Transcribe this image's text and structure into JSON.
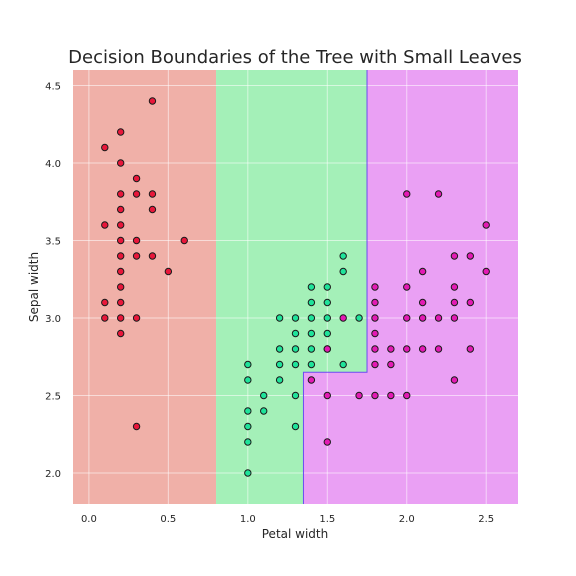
{
  "chart_data": {
    "type": "scatter",
    "title": "Decision Boundaries of the Tree with Small Leaves",
    "xlabel": "Petal width",
    "ylabel": "Sepal width",
    "xlim": [
      -0.1,
      2.7
    ],
    "ylim": [
      1.8,
      4.6
    ],
    "xticks": [
      "0.0",
      "0.5",
      "1.0",
      "1.5",
      "2.0",
      "2.5"
    ],
    "yticks": [
      "2.0",
      "2.5",
      "3.0",
      "3.5",
      "4.0",
      "4.5"
    ],
    "grid": true,
    "regions": [
      {
        "class": "setosa",
        "color": "#f0b0a8",
        "polygon": [
          [
            -0.1,
            1.8
          ],
          [
            0.8,
            1.8
          ],
          [
            0.8,
            4.6
          ],
          [
            -0.1,
            4.6
          ]
        ]
      },
      {
        "class": "versicolor",
        "color": "#a4f0b8",
        "polygon": [
          [
            0.8,
            1.8
          ],
          [
            1.35,
            1.8
          ],
          [
            1.35,
            2.65
          ],
          [
            1.75,
            2.65
          ],
          [
            1.75,
            4.6
          ],
          [
            0.8,
            4.6
          ]
        ]
      },
      {
        "class": "virginica",
        "color": "#eaa0f4",
        "polygon": [
          [
            1.35,
            1.8
          ],
          [
            2.7,
            1.8
          ],
          [
            2.7,
            4.6
          ],
          [
            1.75,
            4.6
          ],
          [
            1.75,
            2.65
          ],
          [
            1.35,
            2.65
          ]
        ]
      }
    ],
    "boundary_color": "#6a4cf0",
    "boundaries": [
      [
        [
          1.35,
          1.8
        ],
        [
          1.35,
          2.65
        ],
        [
          1.75,
          2.65
        ],
        [
          1.75,
          4.6
        ]
      ]
    ],
    "series": [
      {
        "color": "#e8173a",
        "points": [
          [
            0.4,
            4.4
          ],
          [
            0.2,
            4.2
          ],
          [
            0.1,
            4.1
          ],
          [
            0.2,
            4.0
          ],
          [
            0.3,
            3.9
          ],
          [
            0.2,
            3.8
          ],
          [
            0.3,
            3.8
          ],
          [
            0.4,
            3.8
          ],
          [
            0.2,
            3.7
          ],
          [
            0.4,
            3.7
          ],
          [
            0.1,
            3.6
          ],
          [
            0.2,
            3.6
          ],
          [
            0.2,
            3.5
          ],
          [
            0.3,
            3.5
          ],
          [
            0.6,
            3.5
          ],
          [
            0.2,
            3.4
          ],
          [
            0.3,
            3.4
          ],
          [
            0.4,
            3.4
          ],
          [
            0.2,
            3.3
          ],
          [
            0.5,
            3.3
          ],
          [
            0.2,
            3.2
          ],
          [
            0.1,
            3.1
          ],
          [
            0.2,
            3.1
          ],
          [
            0.1,
            3.0
          ],
          [
            0.2,
            3.0
          ],
          [
            0.3,
            3.0
          ],
          [
            0.2,
            2.9
          ],
          [
            0.3,
            2.3
          ]
        ]
      },
      {
        "color": "#1fe39a",
        "points": [
          [
            1.6,
            3.4
          ],
          [
            1.6,
            3.3
          ],
          [
            1.4,
            3.2
          ],
          [
            1.5,
            3.2
          ],
          [
            1.4,
            3.1
          ],
          [
            1.5,
            3.1
          ],
          [
            1.2,
            3.0
          ],
          [
            1.3,
            3.0
          ],
          [
            1.4,
            3.0
          ],
          [
            1.5,
            3.0
          ],
          [
            1.7,
            3.0
          ],
          [
            1.3,
            2.9
          ],
          [
            1.4,
            2.9
          ],
          [
            1.5,
            2.9
          ],
          [
            1.2,
            2.8
          ],
          [
            1.3,
            2.8
          ],
          [
            1.4,
            2.8
          ],
          [
            1.5,
            2.8
          ],
          [
            1.0,
            2.7
          ],
          [
            1.2,
            2.7
          ],
          [
            1.3,
            2.7
          ],
          [
            1.4,
            2.7
          ],
          [
            1.6,
            2.7
          ],
          [
            1.0,
            2.6
          ],
          [
            1.2,
            2.6
          ],
          [
            1.1,
            2.5
          ],
          [
            1.3,
            2.5
          ],
          [
            1.0,
            2.4
          ],
          [
            1.1,
            2.4
          ],
          [
            1.0,
            2.3
          ],
          [
            1.3,
            2.3
          ],
          [
            1.0,
            2.2
          ],
          [
            1.0,
            2.0
          ]
        ]
      },
      {
        "color": "#e31ab4",
        "points": [
          [
            2.0,
            3.8
          ],
          [
            2.2,
            3.8
          ],
          [
            2.5,
            3.6
          ],
          [
            2.3,
            3.4
          ],
          [
            2.4,
            3.4
          ],
          [
            2.1,
            3.3
          ],
          [
            2.5,
            3.3
          ],
          [
            1.8,
            3.2
          ],
          [
            2.0,
            3.2
          ],
          [
            2.3,
            3.2
          ],
          [
            1.8,
            3.1
          ],
          [
            2.1,
            3.1
          ],
          [
            2.3,
            3.1
          ],
          [
            2.4,
            3.1
          ],
          [
            1.6,
            3.0
          ],
          [
            1.8,
            3.0
          ],
          [
            2.0,
            3.0
          ],
          [
            2.1,
            3.0
          ],
          [
            2.2,
            3.0
          ],
          [
            2.3,
            3.0
          ],
          [
            1.8,
            2.9
          ],
          [
            1.5,
            2.8
          ],
          [
            1.8,
            2.8
          ],
          [
            1.9,
            2.8
          ],
          [
            2.0,
            2.8
          ],
          [
            2.1,
            2.8
          ],
          [
            2.2,
            2.8
          ],
          [
            2.4,
            2.8
          ],
          [
            1.8,
            2.7
          ],
          [
            1.9,
            2.7
          ],
          [
            1.4,
            2.6
          ],
          [
            2.3,
            2.6
          ],
          [
            1.5,
            2.5
          ],
          [
            1.7,
            2.5
          ],
          [
            1.8,
            2.5
          ],
          [
            1.9,
            2.5
          ],
          [
            2.0,
            2.5
          ],
          [
            1.5,
            2.2
          ]
        ]
      }
    ]
  }
}
